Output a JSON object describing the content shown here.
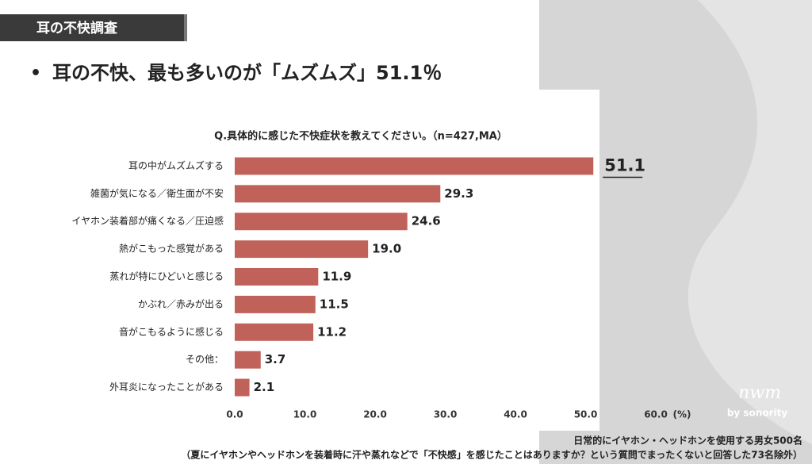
{
  "header": {
    "tag": "耳の不快調査",
    "headline": "耳の不快、最も多いのが「ムズムズ」51.1％"
  },
  "chart_data": {
    "type": "bar",
    "orientation": "horizontal",
    "title": "Q.具体的に感じた不快症状を教えてください。（n=427,MA）",
    "categories": [
      "耳の中がムズムズする",
      "雑菌が気になる／衛生面が不安",
      "イヤホン装着部が痛くなる／圧迫感",
      "熱がこもった感覚がある",
      "蒸れが特にひどいと感じる",
      "かぶれ／赤みが出る",
      "音がこもるように感じる",
      "その他：",
      "外耳炎になったことがある"
    ],
    "values": [
      51.1,
      29.3,
      24.6,
      19.0,
      11.9,
      11.5,
      11.2,
      3.7,
      2.1
    ],
    "value_labels": [
      "51.1",
      "29.3",
      "24.6",
      "19.0",
      "11.9",
      "11.5",
      "11.2",
      "3.7",
      "2.1"
    ],
    "color": "#c0625a",
    "xlim": [
      0,
      60
    ],
    "xticks": [
      {
        "value": 0,
        "label": "0.0"
      },
      {
        "value": 10,
        "label": "10.0"
      },
      {
        "value": 20,
        "label": "20.0"
      },
      {
        "value": 30,
        "label": "30.0"
      },
      {
        "value": 40,
        "label": "40.0"
      },
      {
        "value": 50,
        "label": "50.0"
      },
      {
        "value": 60,
        "label": "60.0"
      }
    ],
    "x_unit_label": "(%)",
    "grid": false
  },
  "footnote": [
    "日常的にイヤホン・ヘッドホンを使用する男女500名",
    "（夏にイヤホンやヘッドホンを装着時に汗や蒸れなどで「不快感」を感じたことはありますか？という質問でまったくないと回答した73名除外）"
  ],
  "logo": {
    "name": "nwm",
    "sub": "by sonority"
  }
}
